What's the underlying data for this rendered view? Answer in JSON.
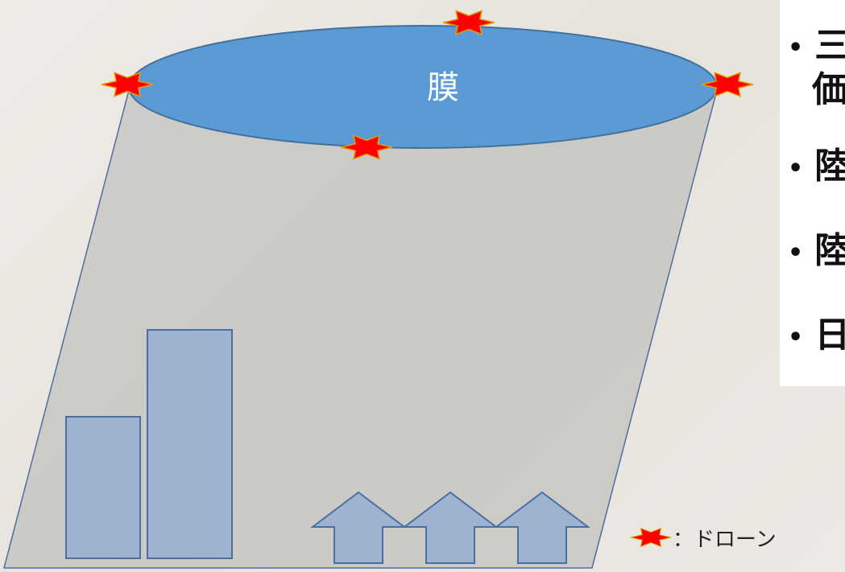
{
  "ellipse_label": "膜",
  "bullets": [
    {
      "lines": [
        "三",
        "価"
      ]
    },
    {
      "lines": [
        "陸"
      ]
    },
    {
      "lines": [
        "陸"
      ]
    },
    {
      "lines": [
        "日"
      ]
    }
  ],
  "legend_label": "：ドローン"
}
